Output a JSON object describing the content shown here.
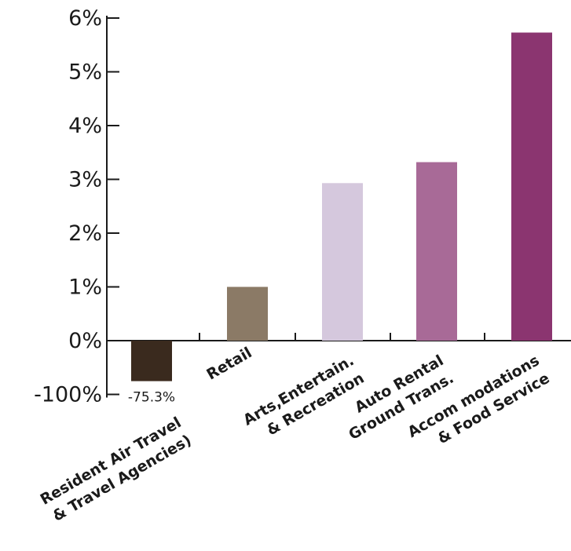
{
  "chart_data": {
    "type": "bar",
    "title": "",
    "xlabel": "",
    "ylabel": "",
    "y_ticks": [
      "-100%",
      "0%",
      "1%",
      "2%",
      "3%",
      "4%",
      "5%",
      "6%"
    ],
    "ylim": [
      -1,
      6
    ],
    "grid": false,
    "legend": "none",
    "categories": [
      [
        "Resident Air Travel",
        "& Travel Agencies)"
      ],
      [
        "Retail"
      ],
      [
        "Arts,Entertain.",
        "& Recreation"
      ],
      [
        "Auto Rental",
        "Ground Trans."
      ],
      [
        "Accom modations",
        "& Food Service"
      ]
    ],
    "values": [
      -75.3,
      1.0,
      2.93,
      3.32,
      5.73
    ],
    "data_labels": [
      "-75.3%",
      "",
      "",
      "",
      ""
    ],
    "colors": [
      "#3a2a1e",
      "#8b7a66",
      "#d5c8dd",
      "#a86a97",
      "#8b3570"
    ],
    "note_broken_axis": true
  }
}
